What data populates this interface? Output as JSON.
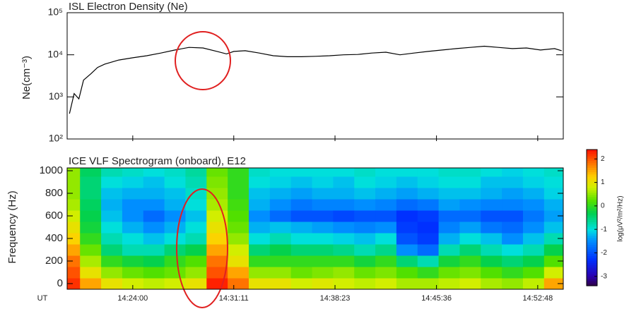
{
  "chart_data": [
    {
      "type": "line",
      "title": "ISL Electron Density (Ne)",
      "y_label": "Ne(cm⁻³)",
      "log_y": true,
      "color": "#000000",
      "xlim": [
        "14:19:20",
        "14:54:37"
      ],
      "ylim": [
        100,
        100000
      ],
      "yticks": [
        {
          "value": 100,
          "label": "10²"
        },
        {
          "value": 1000,
          "label": "10³"
        },
        {
          "value": 10000,
          "label": "10⁴"
        },
        {
          "value": 100000,
          "label": "10⁵"
        }
      ],
      "x": [
        "14:19:30",
        "14:19:50",
        "14:20:10",
        "14:20:30",
        "14:21:00",
        "14:21:30",
        "14:22:00",
        "14:23:00",
        "14:24:00",
        "14:25:00",
        "14:26:00",
        "14:27:00",
        "14:28:00",
        "14:29:00",
        "14:30:00",
        "14:30:40",
        "14:31:11",
        "14:32:00",
        "14:33:00",
        "14:34:00",
        "14:35:00",
        "14:36:00",
        "14:37:00",
        "14:38:00",
        "14:39:00",
        "14:40:00",
        "14:41:00",
        "14:42:00",
        "14:43:00",
        "14:44:00",
        "14:45:00",
        "14:46:00",
        "14:47:00",
        "14:48:00",
        "14:49:00",
        "14:50:00",
        "14:51:00",
        "14:52:00",
        "14:53:00",
        "14:54:00",
        "14:54:30"
      ],
      "values": [
        400,
        1200,
        900,
        2500,
        3500,
        5000,
        6000,
        7500,
        8500,
        9500,
        11000,
        13000,
        15000,
        14500,
        12000,
        10500,
        12000,
        12500,
        11000,
        9500,
        9000,
        9000,
        9200,
        9500,
        10000,
        10200,
        11000,
        11500,
        10000,
        11000,
        12000,
        13000,
        14000,
        15000,
        16000,
        15000,
        14000,
        14500,
        13000,
        14000,
        12500
      ]
    },
    {
      "type": "heatmap",
      "title": "ICE VLF Spectrogram (onboard), E12",
      "y_label": "Frequency (Hz)",
      "x_label": "UT",
      "colorbar_label": "log(μV²/m²/Hz)",
      "xlim": [
        "14:19:20",
        "14:54:37"
      ],
      "xticks": [
        "14:24:00",
        "14:31:11",
        "14:38:23",
        "14:45:36",
        "14:52:48"
      ],
      "ylim": [
        -50,
        1025
      ],
      "yticks": [
        0,
        200,
        400,
        600,
        800,
        1000
      ],
      "zlim": [
        -3.4,
        2.4
      ],
      "zticks": [
        -3,
        -2,
        -1,
        0,
        1,
        2
      ],
      "x": [
        "14:19:30",
        "14:21:00",
        "14:22:30",
        "14:24:00",
        "14:25:30",
        "14:27:00",
        "14:28:30",
        "14:30:00",
        "14:31:30",
        "14:33:00",
        "14:34:30",
        "14:36:00",
        "14:37:30",
        "14:39:00",
        "14:40:30",
        "14:42:00",
        "14:43:30",
        "14:45:00",
        "14:46:30",
        "14:48:00",
        "14:49:30",
        "14:51:00",
        "14:52:30",
        "14:54:00"
      ],
      "y": [
        0,
        100,
        200,
        300,
        400,
        500,
        600,
        700,
        800,
        900,
        1000
      ],
      "values": [
        [
          2.2,
          2.0,
          1.8,
          1.5,
          1.2,
          1.0,
          0.8,
          0.6,
          0.5,
          0.5,
          0.5
        ],
        [
          1.5,
          1.0,
          0.6,
          0.3,
          0.0,
          -0.2,
          -0.3,
          -0.4,
          -0.5,
          -0.5,
          -0.4
        ],
        [
          1.0,
          0.5,
          0.0,
          -0.5,
          -0.8,
          -1.0,
          -1.2,
          -1.3,
          -1.2,
          -1.0,
          -0.8
        ],
        [
          0.8,
          0.3,
          -0.2,
          -0.8,
          -1.0,
          -1.3,
          -1.5,
          -1.5,
          -1.3,
          -1.1,
          -0.9
        ],
        [
          0.7,
          0.2,
          -0.3,
          -0.8,
          -1.2,
          -1.5,
          -1.8,
          -1.5,
          -1.3,
          -1.2,
          -1.0
        ],
        [
          0.8,
          0.3,
          0.0,
          -0.5,
          -1.0,
          -1.3,
          -1.5,
          -1.3,
          -1.2,
          -1.0,
          -0.9
        ],
        [
          1.0,
          0.5,
          0.2,
          -0.3,
          -0.8,
          -1.0,
          -1.2,
          -1.0,
          -0.9,
          -0.8,
          -0.7
        ],
        [
          2.3,
          2.0,
          1.8,
          1.5,
          1.2,
          1.0,
          0.8,
          0.6,
          0.5,
          0.4,
          0.3
        ],
        [
          1.8,
          1.5,
          1.0,
          0.8,
          0.5,
          0.3,
          0.2,
          0.1,
          0.0,
          0.0,
          0.0
        ],
        [
          1.0,
          0.5,
          0.0,
          -0.5,
          -1.0,
          -1.3,
          -1.5,
          -1.3,
          -1.2,
          -1.0,
          -0.9
        ],
        [
          1.0,
          0.5,
          0.0,
          -0.3,
          -0.8,
          -1.2,
          -1.8,
          -1.5,
          -1.3,
          -1.1,
          -1.0
        ],
        [
          0.8,
          0.3,
          0.0,
          -0.5,
          -1.0,
          -1.3,
          -2.0,
          -1.7,
          -1.4,
          -1.2,
          -1.0
        ],
        [
          0.9,
          0.4,
          0.0,
          -0.5,
          -1.0,
          -1.4,
          -2.0,
          -1.6,
          -1.3,
          -1.1,
          -1.0
        ],
        [
          0.8,
          0.5,
          0.0,
          -0.6,
          -1.1,
          -1.5,
          -2.1,
          -1.6,
          -1.3,
          -1.2,
          -1.0
        ],
        [
          0.7,
          0.3,
          -0.2,
          -0.8,
          -1.2,
          -1.6,
          -2.0,
          -1.5,
          -1.2,
          -1.0,
          -0.9
        ],
        [
          0.8,
          0.4,
          0.0,
          -0.6,
          -1.0,
          -1.5,
          -2.0,
          -1.6,
          -1.3,
          -1.1,
          -1.0
        ],
        [
          0.6,
          0.2,
          -0.5,
          -1.5,
          -2.0,
          -2.2,
          -2.3,
          -1.8,
          -1.4,
          -1.2,
          -1.0
        ],
        [
          0.6,
          0.0,
          -0.8,
          -1.8,
          -2.2,
          -2.3,
          -2.2,
          -1.7,
          -1.3,
          -1.1,
          -1.0
        ],
        [
          0.7,
          0.3,
          -0.2,
          -0.8,
          -1.3,
          -1.6,
          -1.8,
          -1.4,
          -1.2,
          -1.0,
          -0.9
        ],
        [
          0.8,
          0.4,
          0.0,
          -0.5,
          -1.0,
          -1.4,
          -1.8,
          -1.5,
          -1.2,
          -1.0,
          -0.9
        ],
        [
          0.6,
          0.2,
          -0.3,
          -0.8,
          -1.2,
          -1.7,
          -2.0,
          -1.6,
          -1.3,
          -1.2,
          -1.0
        ],
        [
          0.5,
          0.0,
          -0.5,
          -1.0,
          -1.5,
          -1.8,
          -2.0,
          -1.6,
          -1.4,
          -1.2,
          -1.1
        ],
        [
          0.7,
          0.2,
          -0.3,
          -0.8,
          -1.2,
          -1.5,
          -1.7,
          -1.5,
          -1.3,
          -1.1,
          -1.0
        ],
        [
          1.5,
          0.8,
          0.2,
          -0.3,
          -0.8,
          -1.2,
          -1.4,
          -1.3,
          -1.1,
          -1.0,
          -0.9
        ]
      ]
    }
  ]
}
